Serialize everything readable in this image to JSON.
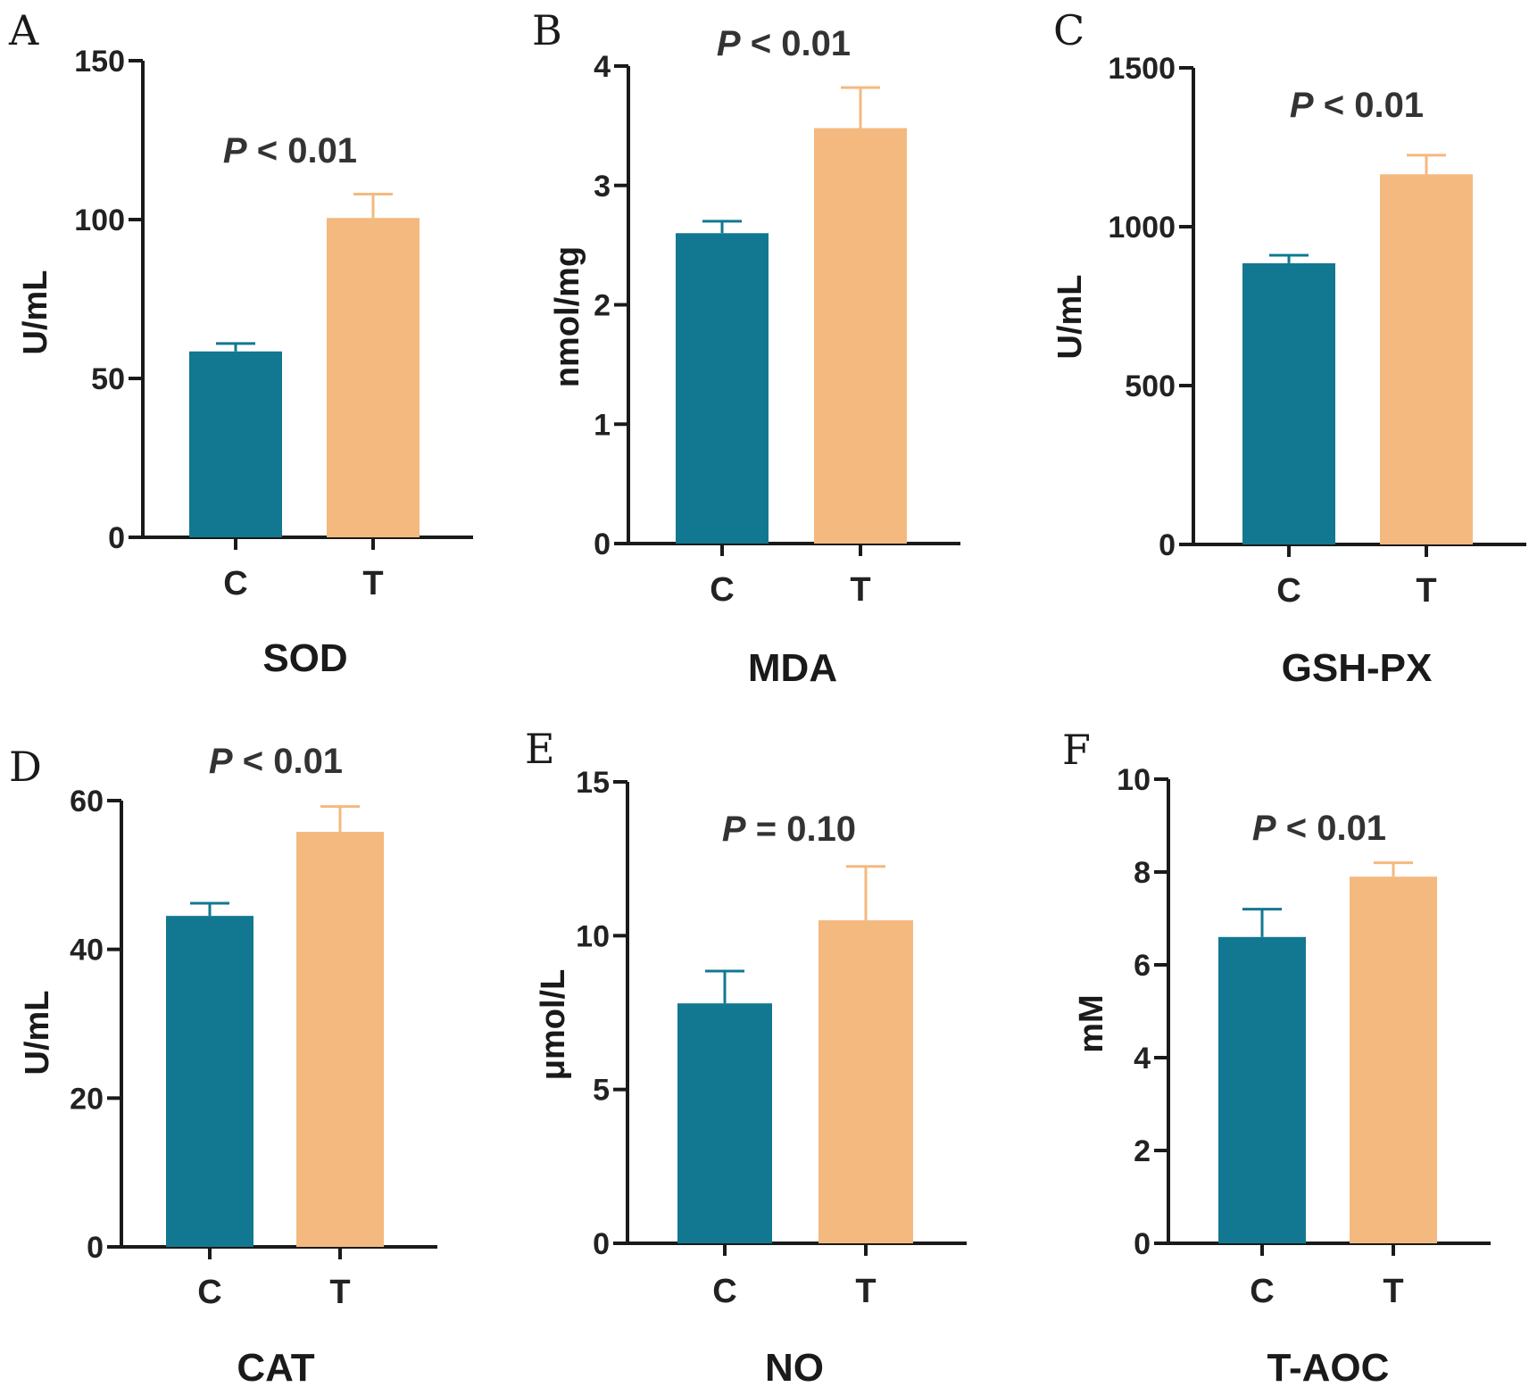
{
  "colors": {
    "control": "#127891",
    "treatment": "#f4b97f",
    "axis": "#1a1a1a"
  },
  "chart_data": [
    {
      "type": "bar",
      "panel": "A",
      "title": "SOD",
      "ylabel": "U/mL",
      "categories": [
        "C",
        "T"
      ],
      "values": [
        58.5,
        100.5
      ],
      "errors": [
        2.5,
        7.5
      ],
      "ylim": [
        0,
        150
      ],
      "yticks": [
        0,
        50,
        100,
        150
      ],
      "ytick_labels": [
        "0",
        "50",
        "100",
        "150"
      ],
      "annotation": {
        "p": "P",
        "op": "<",
        "value": "0.01"
      }
    },
    {
      "type": "bar",
      "panel": "B",
      "title": "MDA",
      "ylabel": "nmol/mg",
      "categories": [
        "C",
        "T"
      ],
      "values": [
        2.6,
        3.48
      ],
      "errors": [
        0.1,
        0.34
      ],
      "ylim": [
        0,
        4
      ],
      "yticks": [
        0,
        1,
        2,
        3,
        4
      ],
      "ytick_labels": [
        "0",
        "1",
        "2",
        "3",
        "4"
      ],
      "annotation": {
        "p": "P",
        "op": "<",
        "value": "0.01"
      }
    },
    {
      "type": "bar",
      "panel": "C",
      "title": "GSH-PX",
      "ylabel": "U/mL",
      "categories": [
        "C",
        "T"
      ],
      "values": [
        885,
        1165
      ],
      "errors": [
        25,
        60
      ],
      "ylim": [
        0,
        1500
      ],
      "yticks": [
        0,
        500,
        1000,
        1500
      ],
      "ytick_labels": [
        "0",
        "500",
        "1000",
        "1500"
      ],
      "annotation": {
        "p": "P",
        "op": "<",
        "value": "0.01"
      }
    },
    {
      "type": "bar",
      "panel": "D",
      "title": "CAT",
      "ylabel": "U/mL",
      "categories": [
        "C",
        "T"
      ],
      "values": [
        44.5,
        55.8
      ],
      "errors": [
        1.7,
        3.4
      ],
      "ylim": [
        0,
        60
      ],
      "yticks": [
        0,
        20,
        40,
        60
      ],
      "ytick_labels": [
        "0",
        "20",
        "40",
        "60"
      ],
      "annotation": {
        "p": "P",
        "op": "<",
        "value": "0.01"
      }
    },
    {
      "type": "bar",
      "panel": "E",
      "title": "NO",
      "ylabel": "μmol/L",
      "categories": [
        "C",
        "T"
      ],
      "values": [
        7.8,
        10.5
      ],
      "errors": [
        1.05,
        1.75
      ],
      "ylim": [
        0,
        15
      ],
      "yticks": [
        0,
        5,
        10,
        15
      ],
      "ytick_labels": [
        "0",
        "5",
        "10",
        "15"
      ],
      "annotation": {
        "p": "P",
        "op": "=",
        "value": "0.10"
      }
    },
    {
      "type": "bar",
      "panel": "F",
      "title": "T-AOC",
      "ylabel": "mM",
      "categories": [
        "C",
        "T"
      ],
      "values": [
        6.6,
        7.9
      ],
      "errors": [
        0.6,
        0.3
      ],
      "ylim": [
        0,
        10
      ],
      "yticks": [
        0,
        2,
        4,
        6,
        8,
        10
      ],
      "ytick_labels": [
        "0",
        "2",
        "4",
        "6",
        "8",
        "10"
      ],
      "annotation": {
        "p": "P",
        "op": "<",
        "value": "0.01"
      }
    }
  ]
}
